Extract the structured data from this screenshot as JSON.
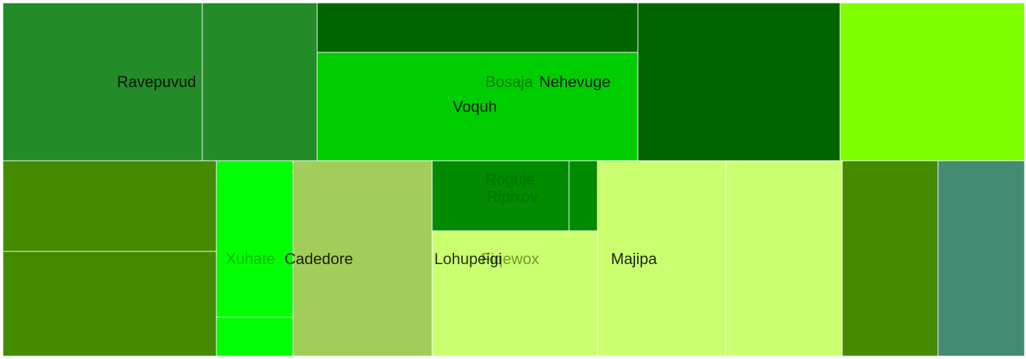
{
  "chart_data": {
    "type": "treemap",
    "title": "",
    "tiles": [
      {
        "color": "#238b28"
      },
      {
        "color": "#238b28"
      },
      {
        "color": "#006400"
      },
      {
        "color": "#00cd00"
      },
      {
        "color": "#006400"
      },
      {
        "color": "#7fff00"
      },
      {
        "color": "#458b00"
      },
      {
        "color": "#458b00"
      },
      {
        "color": "#00ff00"
      },
      {
        "color": "#00ff00"
      },
      {
        "color": "#a2cd5a"
      },
      {
        "color": "#008b00"
      },
      {
        "color": "#008b00"
      },
      {
        "color": "#caff70"
      },
      {
        "color": "#caff70"
      },
      {
        "color": "#caff70"
      },
      {
        "color": "#458b00"
      },
      {
        "color": "#458b74"
      }
    ],
    "labels": [
      {
        "text": "Ravepuvud",
        "color": "#000000",
        "opacity": 0.85
      },
      {
        "text": "Bosaja",
        "color": "#006400",
        "opacity": 0.75
      },
      {
        "text": "Nehevuge",
        "color": "#000000",
        "opacity": 0.85
      },
      {
        "text": "Voquh",
        "color": "#000000",
        "opacity": 0.85
      },
      {
        "text": "Roguje",
        "color": "#006400",
        "opacity": 0.55
      },
      {
        "text": "Ripixov",
        "color": "#006400",
        "opacity": 0.55
      },
      {
        "text": "Xuhate",
        "color": "#00a000",
        "opacity": 0.75
      },
      {
        "text": "Cadedore",
        "color": "#000000",
        "opacity": 0.85
      },
      {
        "text": "Fiqewox",
        "color": "#6b8e23",
        "opacity": 0.9
      },
      {
        "text": "Lohupeigi",
        "color": "#000000",
        "opacity": 0.8
      },
      {
        "text": "Majipa",
        "color": "#000000",
        "opacity": 0.85
      }
    ]
  }
}
